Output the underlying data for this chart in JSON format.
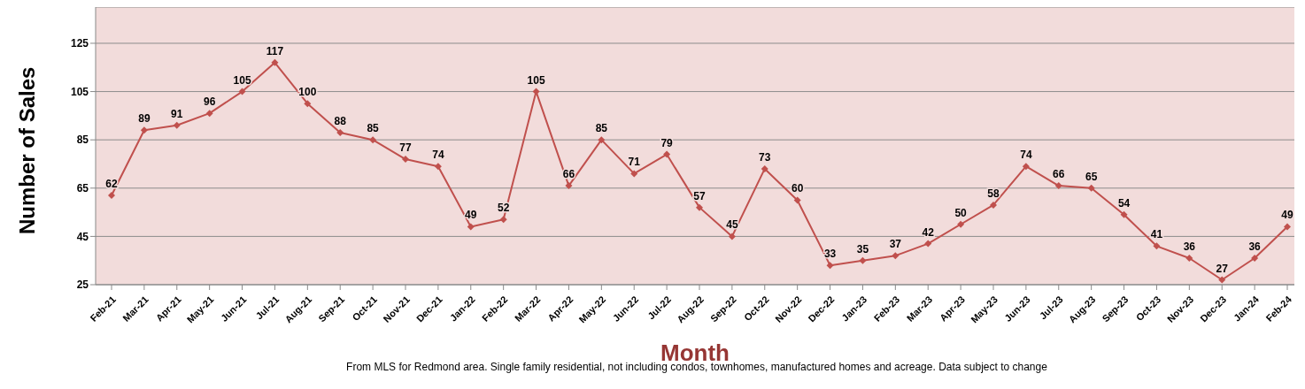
{
  "chart_data": {
    "type": "line",
    "xlabel": "Month",
    "ylabel": "Number of Sales",
    "categories": [
      "Feb-21",
      "Mar-21",
      "Apr-21",
      "May-21",
      "Jun-21",
      "Jul-21",
      "Aug-21",
      "Sep-21",
      "Oct-21",
      "Nov-21",
      "Dec-21",
      "Jan-22",
      "Feb-22",
      "Mar-22",
      "Apr-22",
      "May-22",
      "Jun-22",
      "Jul-22",
      "Aug-22",
      "Sep-22",
      "Oct-22",
      "Nov-22",
      "Dec-22",
      "Jan-23",
      "Feb-23",
      "Mar-23",
      "Apr-23",
      "May-23",
      "Jun-23",
      "Jul-23",
      "Aug-23",
      "Sep-23",
      "Oct-23",
      "Nov-23",
      "Dec-23",
      "Jan-24",
      "Feb-24"
    ],
    "series": [
      {
        "color": "#c0504d",
        "values": [
          62,
          89,
          91,
          96,
          105,
          117,
          100,
          88,
          85,
          77,
          74,
          49,
          52,
          105,
          66,
          85,
          71,
          79,
          57,
          45,
          73,
          60,
          33,
          35,
          37,
          42,
          50,
          58,
          74,
          66,
          65,
          54,
          41,
          36,
          27,
          36,
          49
        ]
      }
    ],
    "ylim": [
      25,
      140
    ],
    "yticks": [
      25,
      45,
      65,
      85,
      105,
      125
    ],
    "grid": "y",
    "marker": "diamond",
    "line_style": "solid",
    "data_labels": true,
    "annotations": [
      "From MLS for Redmond area. Single family residential, not including condos, townhomes, manufactured homes and acreage.  Data subject to change"
    ]
  }
}
